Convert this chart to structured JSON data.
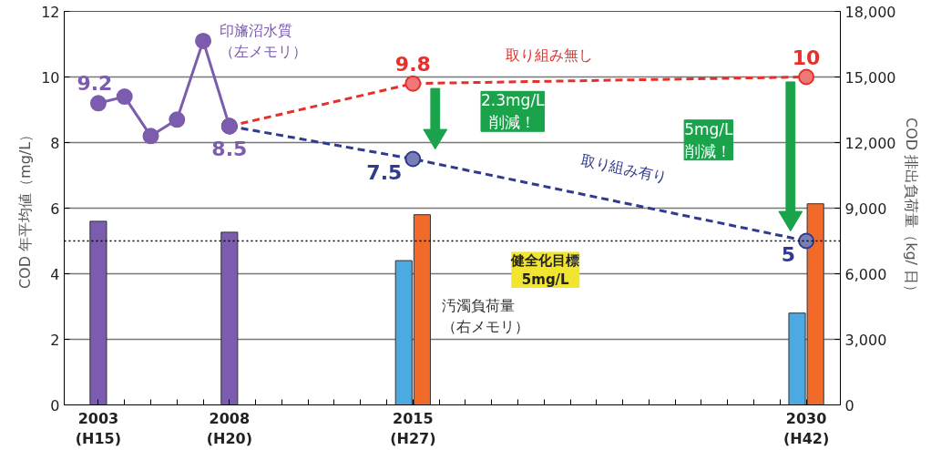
{
  "chart_data": {
    "type": "line",
    "categories": [
      "2003\n(H15)",
      null,
      null,
      null,
      null,
      "2008\n(H20)",
      null,
      null,
      null,
      null,
      null,
      null,
      "2015\n(H27)",
      null,
      null,
      null,
      null,
      null,
      null,
      null,
      null,
      null,
      null,
      null,
      null,
      null,
      null,
      "2030\n(H42)"
    ],
    "ylabel": "COD 年平均値（mg/L）",
    "y2label": "COD 排出負荷量（kg/ 日）",
    "ylim": [
      0,
      12
    ],
    "yticks": [
      0,
      2,
      4,
      6,
      8,
      10,
      12
    ],
    "y2lim": [
      0,
      18000
    ],
    "y2ticks": [
      {
        "value": 0,
        "label": "0"
      },
      {
        "value": 3000,
        "label": "3,000"
      },
      {
        "value": 6000,
        "label": "6,000"
      },
      {
        "value": 9000,
        "label": "9,000"
      },
      {
        "value": 12000,
        "label": "12,000"
      },
      {
        "value": 15000,
        "label": "15,000"
      },
      {
        "value": 18000,
        "label": "18,000"
      }
    ],
    "grid": "y",
    "legend": false,
    "marker": "circle",
    "series": [
      {
        "name": "取り組み無し",
        "color": "#e5302c",
        "line_style": "dashed",
        "values": [
          null,
          null,
          null,
          null,
          null,
          8.5,
          null,
          null,
          null,
          null,
          null,
          null,
          9.8,
          null,
          null,
          null,
          null,
          null,
          null,
          null,
          null,
          null,
          null,
          null,
          null,
          null,
          null,
          10
        ],
        "value_labels": [
          null,
          null,
          null,
          null,
          null,
          null,
          null,
          null,
          null,
          null,
          null,
          null,
          "9.8",
          null,
          null,
          null,
          null,
          null,
          null,
          null,
          null,
          null,
          null,
          null,
          null,
          null,
          null,
          "10"
        ]
      },
      {
        "name": "取り組み有り",
        "color": "#2f3b8f",
        "line_style": "dashed",
        "values": [
          null,
          null,
          null,
          null,
          null,
          8.5,
          null,
          null,
          null,
          null,
          null,
          null,
          7.5,
          null,
          null,
          null,
          null,
          null,
          null,
          null,
          null,
          null,
          null,
          null,
          null,
          null,
          null,
          5
        ],
        "value_labels": [
          null,
          null,
          null,
          null,
          null,
          null,
          null,
          null,
          null,
          null,
          null,
          null,
          "7.5",
          null,
          null,
          null,
          null,
          null,
          null,
          null,
          null,
          null,
          null,
          null,
          null,
          null,
          null,
          "5"
        ]
      },
      {
        "name": "印旛沼水質（左メモリ）",
        "color": "#7b5cae",
        "line_style": "solid",
        "values": [
          9.2,
          9.4,
          8.2,
          8.7,
          11.1,
          8.5,
          null,
          null,
          null,
          null,
          null,
          null,
          null,
          null,
          null,
          null,
          null,
          null,
          null,
          null,
          null,
          null,
          null,
          null,
          null,
          null,
          null,
          null
        ],
        "value_labels": [
          "9.2",
          null,
          null,
          null,
          null,
          "8.5",
          null,
          null,
          null,
          null,
          null,
          null,
          null,
          null,
          null,
          null,
          null,
          null,
          null,
          null,
          null,
          null,
          null,
          null,
          null,
          null,
          null,
          null
        ]
      },
      {
        "type": "bar",
        "axis": "y2",
        "color": "#7b5cae",
        "values": [
          8400,
          null,
          null,
          null,
          null,
          7900,
          null,
          null,
          null,
          null,
          null,
          null,
          null,
          null,
          null,
          null,
          null,
          null,
          null,
          null,
          null,
          null,
          null,
          null,
          null,
          null,
          null,
          null
        ]
      },
      {
        "name": "汚濁負荷量（右メモリ）",
        "type": "bar",
        "axis": "y2",
        "color": "#4da9e2",
        "values": [
          null,
          null,
          null,
          null,
          null,
          null,
          null,
          null,
          null,
          null,
          null,
          null,
          6600,
          null,
          null,
          null,
          null,
          null,
          null,
          null,
          null,
          null,
          null,
          null,
          null,
          null,
          null,
          4200
        ]
      },
      {
        "type": "bar",
        "axis": "y2",
        "color": "#f26a2a",
        "values": [
          null,
          null,
          null,
          null,
          null,
          null,
          null,
          null,
          null,
          null,
          null,
          null,
          8700,
          null,
          null,
          null,
          null,
          null,
          null,
          null,
          null,
          null,
          null,
          null,
          null,
          null,
          null,
          9200
        ]
      }
    ],
    "ref_lines": [
      {
        "axis": "y",
        "value": 5,
        "label": "健全化目標\n5mg/L",
        "color": "#000000",
        "line_style": "dotted"
      }
    ],
    "annotations": [
      "2.3mg/L\n削減！",
      "5mg/L\n削減！"
    ]
  }
}
